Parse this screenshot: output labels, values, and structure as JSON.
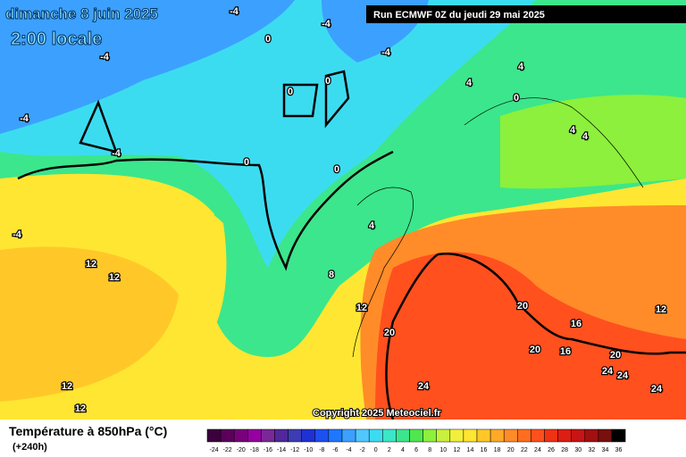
{
  "header": {
    "title": "dimanche 8 juin 2025",
    "time": "2:00 locale",
    "run": "Run ECMWF 0Z du jeudi 29 mai 2025",
    "copyright": "Copyright 2025 Meteociel.fr"
  },
  "footer": {
    "variable": "Température à 850hPa (°C)",
    "lead": "(+240h)"
  },
  "colorbar": {
    "values": [
      -24,
      -22,
      -20,
      -18,
      -16,
      -14,
      -12,
      -10,
      -8,
      -6,
      -4,
      -2,
      0,
      2,
      4,
      6,
      8,
      10,
      12,
      14,
      16,
      18,
      20,
      22,
      24,
      26,
      28,
      30,
      32,
      34,
      36
    ],
    "colors": [
      "#3c003c",
      "#5a005a",
      "#78007a",
      "#9600a0",
      "#7a2896",
      "#50289a",
      "#3c3cb4",
      "#1e32d2",
      "#1e50f0",
      "#1e78ff",
      "#3ca0ff",
      "#50c8ff",
      "#3cdcf0",
      "#3ce6c8",
      "#3ce68c",
      "#50e650",
      "#8cf03c",
      "#c8f03c",
      "#f0f03c",
      "#ffe632",
      "#ffc828",
      "#ffaa28",
      "#ff8c28",
      "#ff6e1e",
      "#ff501e",
      "#f03214",
      "#dc1e14",
      "#c81414",
      "#a01010",
      "#781010",
      "#000000"
    ]
  },
  "map_labels": [
    -4,
    -4,
    0,
    -4,
    -4,
    4,
    0,
    0,
    4,
    0,
    -4,
    4,
    4,
    -4,
    0,
    0,
    4,
    -4,
    12,
    12,
    8,
    12,
    20,
    12,
    16,
    20,
    20,
    16,
    20,
    24,
    24,
    24,
    24,
    12,
    12
  ]
}
